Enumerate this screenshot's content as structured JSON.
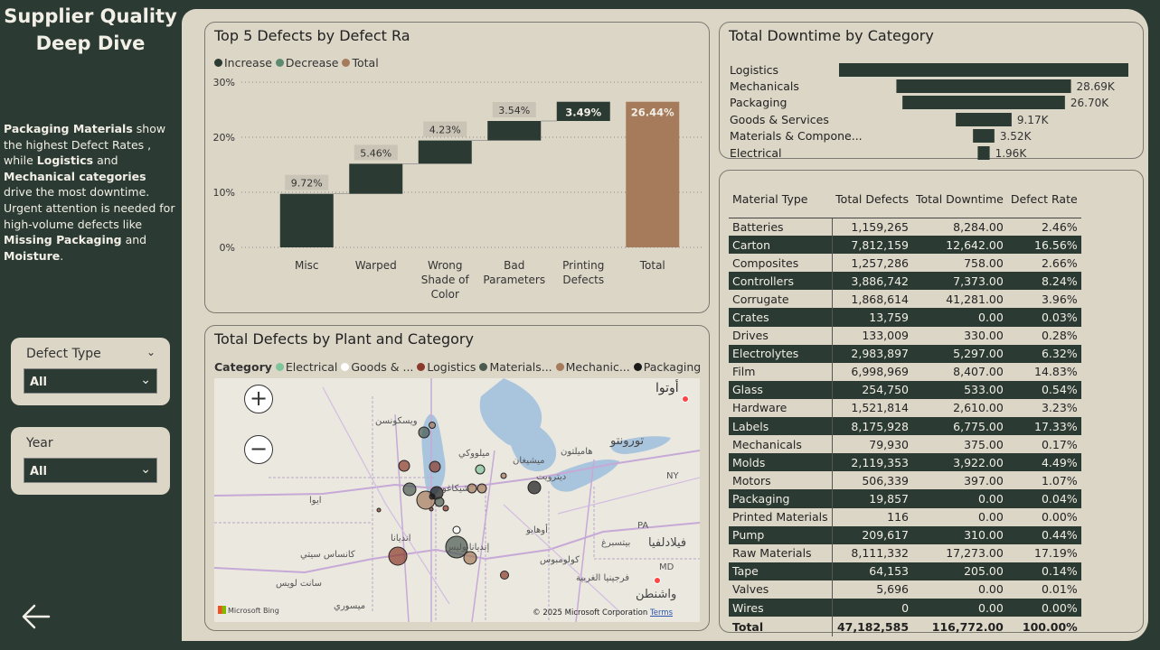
{
  "sidebar": {
    "title_line1": "Supplier Quality",
    "title_line2": "Deep Dive",
    "summary": {
      "s1": "Packaging Materials",
      "s2": " show the highest Defect Rates , while ",
      "s3": "Logistics",
      "s4": " and ",
      "s5": "Mechanical categories",
      "s6": " drive the most downtime.",
      "s7": "Urgent attention is needed for high-volume defects like ",
      "s8": "Missing Packaging",
      "s9": " and ",
      "s10": "Moisture",
      "s11": "."
    },
    "slicers": [
      {
        "label": "Defect Type",
        "value": "All"
      },
      {
        "label": "Year",
        "value": "All"
      }
    ],
    "back_icon": "arrow-left-icon"
  },
  "waterfall": {
    "title": "Top 5 Defects by Defect Ra",
    "legend": [
      {
        "label": "Increase",
        "color": "#2b3a32"
      },
      {
        "label": "Decrease",
        "color": "#5e8a70"
      },
      {
        "label": "Total",
        "color": "#a57b5b"
      }
    ],
    "chart_data": {
      "type": "bar",
      "subtype": "waterfall",
      "categories": [
        "Misc",
        "Warped",
        "Wrong Shade of Color",
        "Bad Parameters",
        "Printing Defects",
        "Total"
      ],
      "values": [
        9.72,
        5.46,
        4.23,
        3.54,
        3.49,
        26.44
      ],
      "labels": [
        "9.72%",
        "5.46%",
        "4.23%",
        "3.54%",
        "3.49%",
        "26.44%"
      ],
      "yticks": [
        "0%",
        "10%",
        "20%",
        "30%"
      ],
      "ylim": [
        0,
        30
      ],
      "grid": true
    }
  },
  "funnel": {
    "title": "Total Downtime by Category",
    "chart_data": {
      "type": "bar",
      "subtype": "funnel",
      "categories": [
        "Logistics",
        "Mechanicals",
        "Packaging",
        "Goods & Services",
        "Materials & Compone...",
        "Electrical"
      ],
      "values": [
        47.54,
        28.69,
        26.7,
        9.17,
        3.52,
        1.96
      ],
      "labels": [
        "",
        "28.69K",
        "26.70K",
        "9.17K",
        "3.52K",
        "1.96K"
      ],
      "color": "#2b3a32"
    }
  },
  "map": {
    "title": "Total Defects by Plant and Category",
    "legend_title": "Category",
    "legend": [
      {
        "label": "Electrical",
        "color": "#7fc49a"
      },
      {
        "label": "Goods & ...",
        "color": "#ffffff"
      },
      {
        "label": "Logistics",
        "color": "#8a3a2a"
      },
      {
        "label": "Materials...",
        "color": "#4a5a50"
      },
      {
        "label": "Mechanic...",
        "color": "#a57b5b"
      },
      {
        "label": "Packaging",
        "color": "#1a1a1a"
      }
    ],
    "labels": [
      "أوتوا",
      "ويسكونسن",
      "ميلووكي",
      "ميشيغان",
      "هاميلتون",
      "تورونتو",
      "ديترويت",
      "شيكاغو",
      "ايوا",
      "أوهايو",
      "إنديانابوليس",
      "كولومبوس",
      "بيتسبرغ",
      "فيلادلفيا",
      "واشنطن",
      "كانساس سيتي",
      "ميسوري",
      "انديانا",
      "فرجينيا الغربية",
      "NY",
      "PA",
      "MD",
      "سانت لويس"
    ],
    "bing": "Microsoft Bing",
    "copyright": "© 2025 Microsoft Corporation",
    "terms": "Terms"
  },
  "table": {
    "headers": [
      "Material Type",
      "Total Defects",
      "Total Downtime",
      "Defect Rate"
    ],
    "rows": [
      [
        "Batteries",
        "1,159,265",
        "8,284.00",
        "2.46%"
      ],
      [
        "Carton",
        "7,812,159",
        "12,642.00",
        "16.56%"
      ],
      [
        "Composites",
        "1,257,286",
        "758.00",
        "2.66%"
      ],
      [
        "Controllers",
        "3,886,742",
        "7,373.00",
        "8.24%"
      ],
      [
        "Corrugate",
        "1,868,614",
        "41,281.00",
        "3.96%"
      ],
      [
        "Crates",
        "13,759",
        "0.00",
        "0.03%"
      ],
      [
        "Drives",
        "133,009",
        "330.00",
        "0.28%"
      ],
      [
        "Electrolytes",
        "2,983,897",
        "5,297.00",
        "6.32%"
      ],
      [
        "Film",
        "6,998,969",
        "8,407.00",
        "14.83%"
      ],
      [
        "Glass",
        "254,750",
        "533.00",
        "0.54%"
      ],
      [
        "Hardware",
        "1,521,814",
        "2,610.00",
        "3.23%"
      ],
      [
        "Labels",
        "8,175,928",
        "6,775.00",
        "17.33%"
      ],
      [
        "Mechanicals",
        "79,930",
        "375.00",
        "0.17%"
      ],
      [
        "Molds",
        "2,119,353",
        "3,922.00",
        "4.49%"
      ],
      [
        "Motors",
        "506,339",
        "397.00",
        "1.07%"
      ],
      [
        "Packaging",
        "19,857",
        "0.00",
        "0.04%"
      ],
      [
        "Printed Materials",
        "116",
        "0.00",
        "0.00%"
      ],
      [
        "Pump",
        "209,617",
        "310.00",
        "0.44%"
      ],
      [
        "Raw Materials",
        "8,111,332",
        "17,273.00",
        "17.19%"
      ],
      [
        "Tape",
        "64,153",
        "205.00",
        "0.14%"
      ],
      [
        "Valves",
        "5,696",
        "0.00",
        "0.01%"
      ],
      [
        "Wires",
        "0",
        "0.00",
        "0.00%"
      ]
    ],
    "total": [
      "Total",
      "47,182,585",
      "116,772.00",
      "100.00%"
    ]
  }
}
